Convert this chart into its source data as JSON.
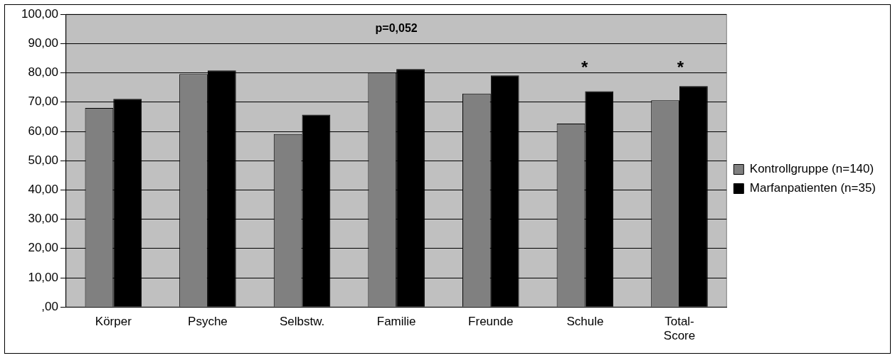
{
  "chart_data": {
    "type": "bar",
    "categories": [
      "Körper",
      "Psyche",
      "Selbstw.",
      "Familie",
      "Freunde",
      "Schule",
      "Total-Score"
    ],
    "series": [
      {
        "name": "Kontrollgruppe (n=140)",
        "color": "#808080",
        "values": [
          68.0,
          79.6,
          59.1,
          80.1,
          72.9,
          62.7,
          70.6
        ]
      },
      {
        "name": "Marfanpatienten (n=35)",
        "color": "#000000",
        "values": [
          71.1,
          80.8,
          65.7,
          81.3,
          79.1,
          73.7,
          75.5
        ]
      }
    ],
    "ylim": [
      0,
      100
    ],
    "yticks": [
      {
        "value": 0,
        "label": ",00"
      },
      {
        "value": 10,
        "label": "10,00"
      },
      {
        "value": 20,
        "label": "20,00"
      },
      {
        "value": 30,
        "label": "30,00"
      },
      {
        "value": 40,
        "label": "40,00"
      },
      {
        "value": 50,
        "label": "50,00"
      },
      {
        "value": 60,
        "label": "60,00"
      },
      {
        "value": 70,
        "label": "70,00"
      },
      {
        "value": 80,
        "label": "80,00"
      },
      {
        "value": 90,
        "label": "90,00"
      },
      {
        "value": 100,
        "label": "100,00"
      }
    ],
    "grid": "y",
    "legend": "right",
    "annotations": [
      "p=0,052",
      "*",
      "*"
    ]
  }
}
